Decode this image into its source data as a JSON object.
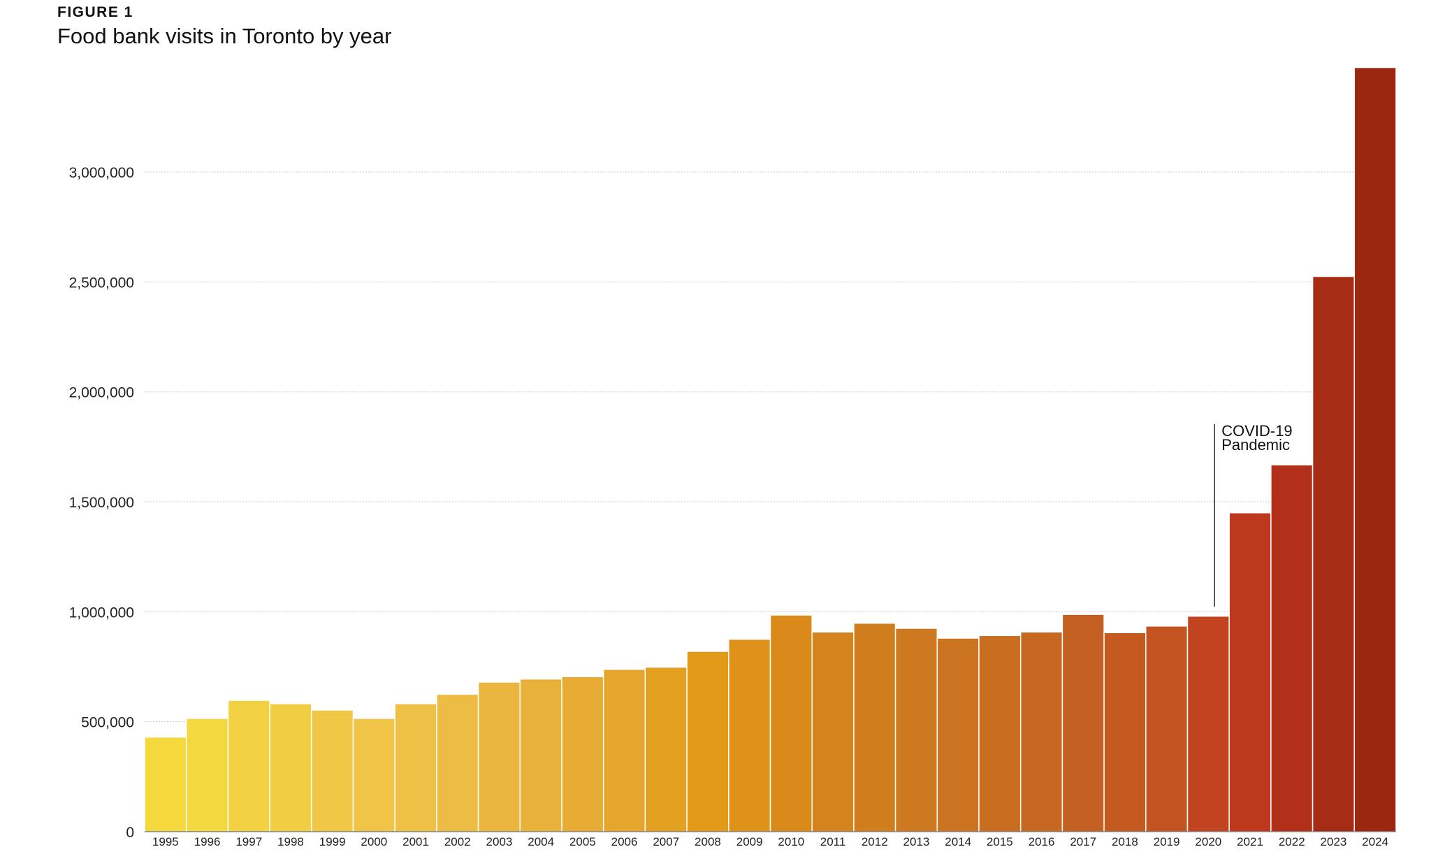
{
  "figure_label": "FIGURE 1",
  "chart_data": {
    "type": "bar",
    "title": "Food bank visits in Toronto by year",
    "xlabel": "",
    "ylabel": "",
    "ylim": [
      0,
      3480000
    ],
    "yticks": [
      0,
      500000,
      1000000,
      1500000,
      2000000,
      2500000,
      3000000
    ],
    "ytick_labels": [
      "0",
      "500,000",
      "1,000,000",
      "1,500,000",
      "2,000,000",
      "2,500,000",
      "3,000,000"
    ],
    "grid": true,
    "categories": [
      "1995",
      "1996",
      "1997",
      "1998",
      "1999",
      "2000",
      "2001",
      "2002",
      "2003",
      "2004",
      "2005",
      "2006",
      "2007",
      "2008",
      "2009",
      "2010",
      "2011",
      "2012",
      "2013",
      "2014",
      "2015",
      "2016",
      "2017",
      "2018",
      "2019",
      "2020",
      "2021",
      "2022",
      "2023",
      "2024"
    ],
    "values": [
      430000,
      515000,
      597000,
      582000,
      553000,
      515000,
      582000,
      625000,
      680000,
      694000,
      705000,
      738000,
      748000,
      820000,
      875000,
      985000,
      908000,
      948000,
      925000,
      880000,
      892000,
      908000,
      988000,
      905000,
      935000,
      980000,
      1450000,
      1668000,
      2525000,
      3475000
    ],
    "colors": [
      "#F5D93C",
      "#F4D840",
      "#F2D243",
      "#F1CD44",
      "#F0C845",
      "#F0C547",
      "#EEC046",
      "#ECBC44",
      "#EAB63F",
      "#E9B13A",
      "#E8AC34",
      "#E6A52C",
      "#E4A020",
      "#E29A18",
      "#DE9219",
      "#D98A1B",
      "#D5831C",
      "#D07D1E",
      "#CE781F",
      "#CB7321",
      "#C96D21",
      "#C66722",
      "#C46021",
      "#C55A21",
      "#C35320",
      "#C1431F",
      "#BD381C",
      "#B2301A",
      "#A62C16",
      "#9B2711"
    ],
    "annotation": {
      "line1": "COVID-19",
      "line2": "Pandemic",
      "category": "2020"
    }
  }
}
